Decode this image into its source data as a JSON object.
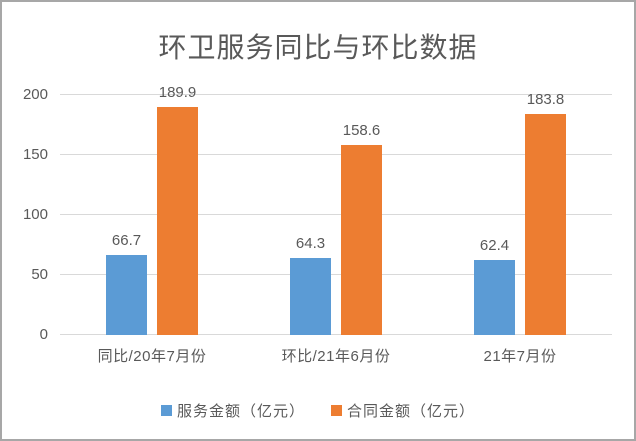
{
  "window": {
    "background": "#ffffff",
    "border_color": "#a7a7a7",
    "text_color": "#595959",
    "gridline_color": "#d9d9d9"
  },
  "chart_data": {
    "type": "bar",
    "title": "环卫服务同比与环比数据",
    "categories": [
      "同比/20年7月份",
      "环比/21年6月份",
      "21年7月份"
    ],
    "series": [
      {
        "name": "服务金额（亿元）",
        "color": "#5b9bd5",
        "values": [
          66.7,
          64.3,
          62.4
        ]
      },
      {
        "name": "合同金额（亿元）",
        "color": "#ed7d31",
        "values": [
          189.9,
          158.6,
          183.8
        ]
      }
    ],
    "ylim": [
      0,
      200
    ],
    "yticks": [
      0,
      50,
      100,
      150,
      200
    ],
    "grid": true,
    "legend_position": "bottom",
    "data_labels": true
  }
}
